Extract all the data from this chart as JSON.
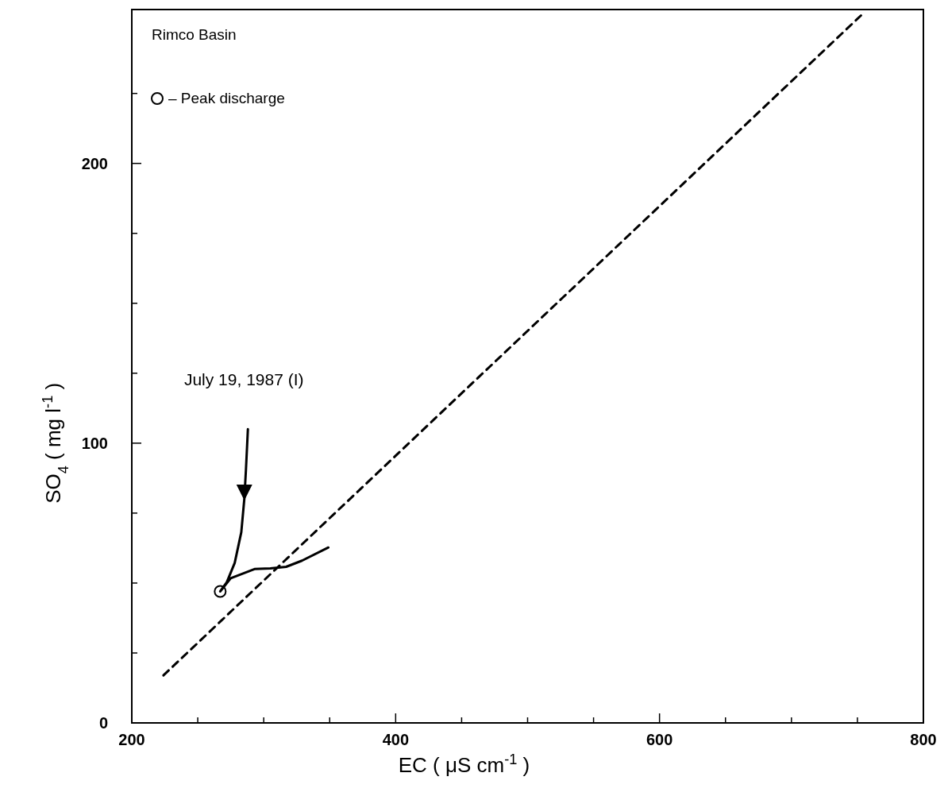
{
  "chart_data": {
    "type": "line",
    "xlabel": "EC ( μS cm$^{-1}$ )",
    "ylabel": "SO$_{4}$ ( mg l$^{-1}$ )",
    "xlim": [
      200,
      800
    ],
    "ylim": [
      0,
      255
    ],
    "xticks": [
      200,
      {
        "value": 250,
        "label": null
      },
      {
        "value": 300,
        "label": null
      },
      {
        "value": 350,
        "label": null
      },
      400,
      {
        "value": 450,
        "label": null
      },
      {
        "value": 500,
        "label": null
      },
      {
        "value": 550,
        "label": null
      },
      600,
      {
        "value": 650,
        "label": null
      },
      {
        "value": 700,
        "label": null
      },
      {
        "value": 750,
        "label": null
      },
      800
    ],
    "yticks": [
      0,
      {
        "value": 25,
        "label": null
      },
      {
        "value": 50,
        "label": null
      },
      {
        "value": 75,
        "label": null
      },
      100,
      {
        "value": 125,
        "label": null
      },
      {
        "value": 150,
        "label": null
      },
      {
        "value": 175,
        "label": null
      },
      200,
      {
        "value": 225,
        "label": null
      }
    ],
    "grid": false,
    "legend": "top left",
    "annotations": [
      "Rimco Basin",
      {
        "text": "July 19, 1987 (I)",
        "x": 288,
        "y": 105
      }
    ],
    "series": [
      {
        "type": "line",
        "color": "#000000",
        "line_style": "solid",
        "marker": "none",
        "x": [
          288,
          286.5,
          285.3,
          283,
          278,
          272,
          267,
          275,
          293,
          305,
          317,
          329,
          349
        ],
        "values": [
          105,
          90.3,
          80.1,
          68.2,
          57.2,
          50.3,
          47,
          51.7,
          55,
          55.2,
          55.8,
          58,
          62.7
        ]
      },
      {
        "type": "line",
        "color": "#000000",
        "line_style": "dashed",
        "marker": "none",
        "x": [
          224,
          753
        ],
        "values": [
          17,
          253
        ]
      },
      {
        "type": "scatter",
        "name": "– Peak discharge",
        "color": "#000000",
        "marker": "circle",
        "x": [
          267
        ],
        "values": [
          47
        ]
      }
    ]
  }
}
